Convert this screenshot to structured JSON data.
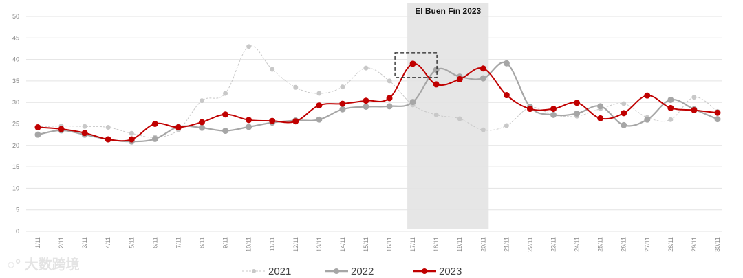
{
  "chart_data": {
    "type": "line",
    "title": "",
    "xlabel": "",
    "ylabel": "",
    "ylim": [
      0,
      50
    ],
    "yticks": [
      0,
      5,
      10,
      15,
      20,
      25,
      30,
      35,
      40,
      45,
      50
    ],
    "grid": true,
    "legend_position": "bottom",
    "categories": [
      "1/11",
      "2/11",
      "3/11",
      "4/11",
      "5/11",
      "6/11",
      "7/11",
      "8/11",
      "9/11",
      "10/11",
      "11/11",
      "12/11",
      "13/11",
      "14/11",
      "15/11",
      "16/11",
      "17/11",
      "18/11",
      "19/11",
      "20/11",
      "21/11",
      "22/11",
      "23/11",
      "24/11",
      "25/11",
      "26/11",
      "27/11",
      "28/11",
      "29/11",
      "30/11"
    ],
    "series": [
      {
        "name": "2021",
        "color": "#c8c8c8",
        "style": "dashed",
        "values": [
          24.3,
          24.5,
          24.4,
          24.2,
          22.8,
          21.9,
          23.6,
          30.4,
          32.1,
          43.0,
          37.7,
          33.5,
          32.1,
          33.6,
          38.0,
          35.0,
          29.4,
          27.1,
          26.2,
          23.6,
          24.6,
          28.8,
          27.1,
          26.8,
          28.5,
          29.7,
          26.5,
          26.0,
          31.2,
          27.9
        ]
      },
      {
        "name": "2022",
        "color": "#a6a6a6",
        "style": "solid",
        "values": [
          22.5,
          23.5,
          22.5,
          21.4,
          20.9,
          21.5,
          24.3,
          24.1,
          23.4,
          24.3,
          25.3,
          25.8,
          26.0,
          28.4,
          29.0,
          29.1,
          30.1,
          37.6,
          36.0,
          35.6,
          39.1,
          29.0,
          27.1,
          27.4,
          29.1,
          24.7,
          26.0,
          30.6,
          28.4,
          26.1
        ]
      },
      {
        "name": "2023",
        "color": "#c00000",
        "style": "solid",
        "values": [
          24.2,
          23.8,
          22.9,
          21.4,
          21.4,
          25.0,
          24.2,
          25.4,
          27.2,
          25.9,
          25.7,
          25.6,
          29.3,
          29.7,
          30.4,
          31.0,
          39.0,
          34.2,
          35.4,
          37.9,
          31.7,
          28.5,
          28.5,
          29.9,
          26.3,
          27.5,
          31.6,
          28.7,
          28.2,
          27.6
        ]
      }
    ],
    "annotations": [
      {
        "type": "shaded-band",
        "label": "El Buen Fin 2023",
        "from": "17/11",
        "to": "20/11",
        "color": "#e6e6e6"
      },
      {
        "type": "dashed-box",
        "around": "17/11",
        "series": "2023"
      }
    ]
  },
  "watermark": "大数跨境"
}
